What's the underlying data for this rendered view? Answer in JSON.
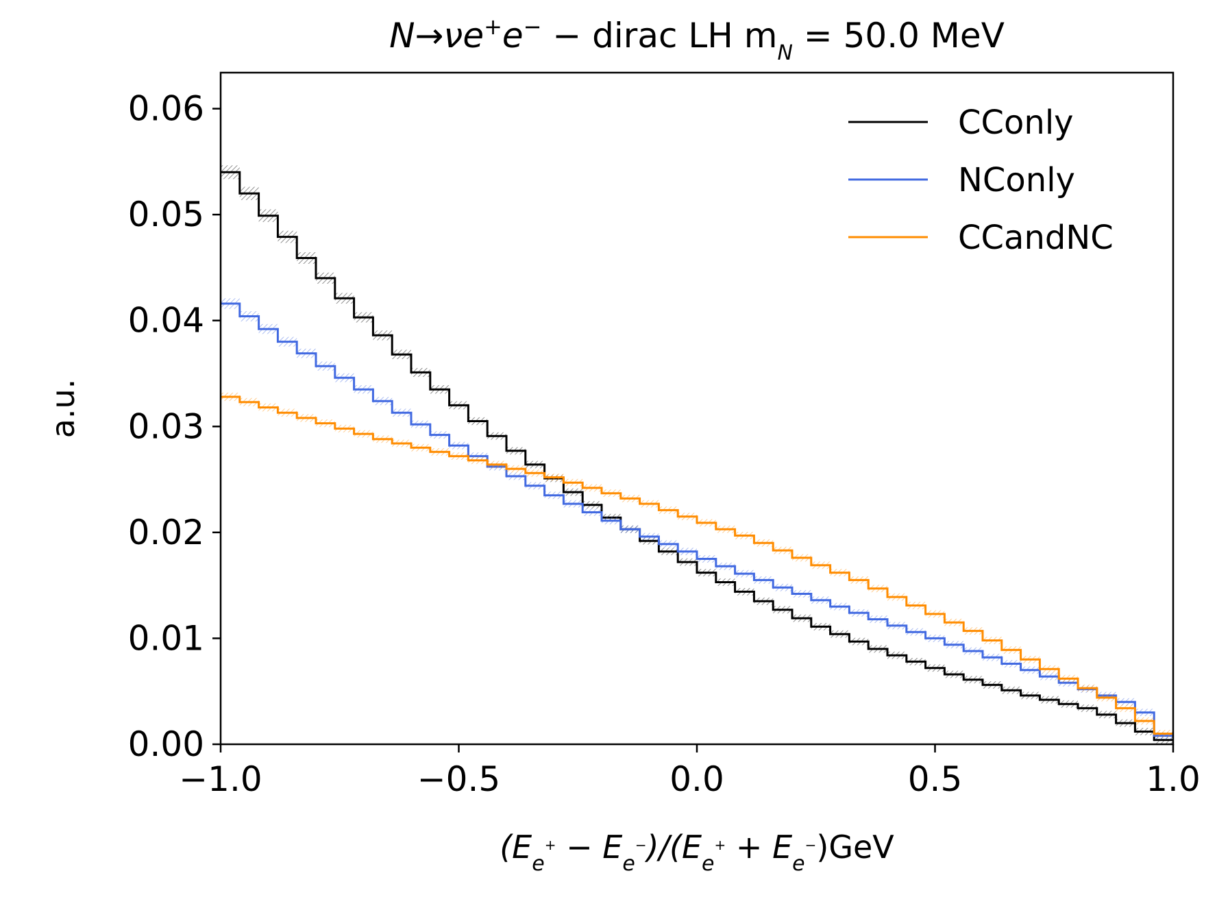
{
  "chart_data": {
    "type": "line",
    "title": {
      "part1": "N→νe",
      "sup1": "+",
      "part2": "e",
      "sup2": "−",
      "part3": " − dirac LH m",
      "sub1": "N",
      "part4": " = 50.0 MeV"
    },
    "xlabel": {
      "p1": "(E",
      "s1": "e",
      "ss1": "+",
      "p2": " − E",
      "s2": "e",
      "ss2": "−",
      "p3": ")/(E",
      "s3": "e",
      "ss3": "+",
      "p4": " + E",
      "s4": "e",
      "ss4": "−",
      "p5": ")GeV"
    },
    "ylabel": "a.u.",
    "xlim": [
      -1.0,
      1.0
    ],
    "ylim": [
      0.0,
      0.0634
    ],
    "xticks": [
      -1.0,
      -0.5,
      0.0,
      0.5,
      1.0
    ],
    "xtick_labels": [
      "−1.0",
      "−0.5",
      "0.0",
      "0.5",
      "1.0"
    ],
    "yticks": [
      0.0,
      0.01,
      0.02,
      0.03,
      0.04,
      0.05,
      0.06
    ],
    "ytick_labels": [
      "0.00",
      "0.01",
      "0.02",
      "0.03",
      "0.04",
      "0.05",
      "0.06"
    ],
    "bins": 50,
    "legend_position": "top-right",
    "series": [
      {
        "name": "CConly",
        "color": "#000000",
        "values": [
          0.054,
          0.052,
          0.0499,
          0.0479,
          0.0459,
          0.044,
          0.0421,
          0.0403,
          0.0386,
          0.0368,
          0.0351,
          0.0335,
          0.032,
          0.0305,
          0.0291,
          0.0277,
          0.0264,
          0.0251,
          0.0238,
          0.0226,
          0.0214,
          0.0203,
          0.0192,
          0.0182,
          0.0172,
          0.0162,
          0.0153,
          0.0144,
          0.0135,
          0.0127,
          0.0119,
          0.0111,
          0.0104,
          0.0097,
          0.009,
          0.0084,
          0.0078,
          0.0072,
          0.0066,
          0.0061,
          0.0056,
          0.0051,
          0.0046,
          0.0042,
          0.0038,
          0.0034,
          0.0028,
          0.002,
          0.0012,
          0.0004
        ]
      },
      {
        "name": "NConly",
        "color": "#4169e1",
        "values": [
          0.0416,
          0.0404,
          0.0392,
          0.038,
          0.0369,
          0.0357,
          0.0346,
          0.0335,
          0.0324,
          0.0313,
          0.0302,
          0.0292,
          0.0282,
          0.0272,
          0.0262,
          0.0253,
          0.0244,
          0.0235,
          0.0227,
          0.0219,
          0.0211,
          0.0203,
          0.0196,
          0.0189,
          0.0182,
          0.0175,
          0.0168,
          0.0161,
          0.0155,
          0.0148,
          0.0142,
          0.0136,
          0.013,
          0.0124,
          0.0118,
          0.0112,
          0.0106,
          0.01,
          0.0094,
          0.0088,
          0.0082,
          0.0076,
          0.007,
          0.0064,
          0.0058,
          0.0052,
          0.0046,
          0.004,
          0.003,
          0.0008
        ]
      },
      {
        "name": "CCandNC",
        "color": "#ff8c00",
        "values": [
          0.0328,
          0.0323,
          0.0318,
          0.0313,
          0.0308,
          0.0303,
          0.0298,
          0.0293,
          0.0288,
          0.0284,
          0.028,
          0.0276,
          0.0272,
          0.0268,
          0.0264,
          0.026,
          0.0256,
          0.0252,
          0.0247,
          0.0242,
          0.0237,
          0.0232,
          0.0227,
          0.0221,
          0.0215,
          0.0209,
          0.0203,
          0.0197,
          0.019,
          0.0183,
          0.0176,
          0.0169,
          0.0162,
          0.0155,
          0.0147,
          0.0139,
          0.0131,
          0.0123,
          0.0115,
          0.0107,
          0.0098,
          0.0089,
          0.008,
          0.0071,
          0.0062,
          0.0053,
          0.0044,
          0.0034,
          0.0022,
          0.001
        ]
      }
    ]
  }
}
